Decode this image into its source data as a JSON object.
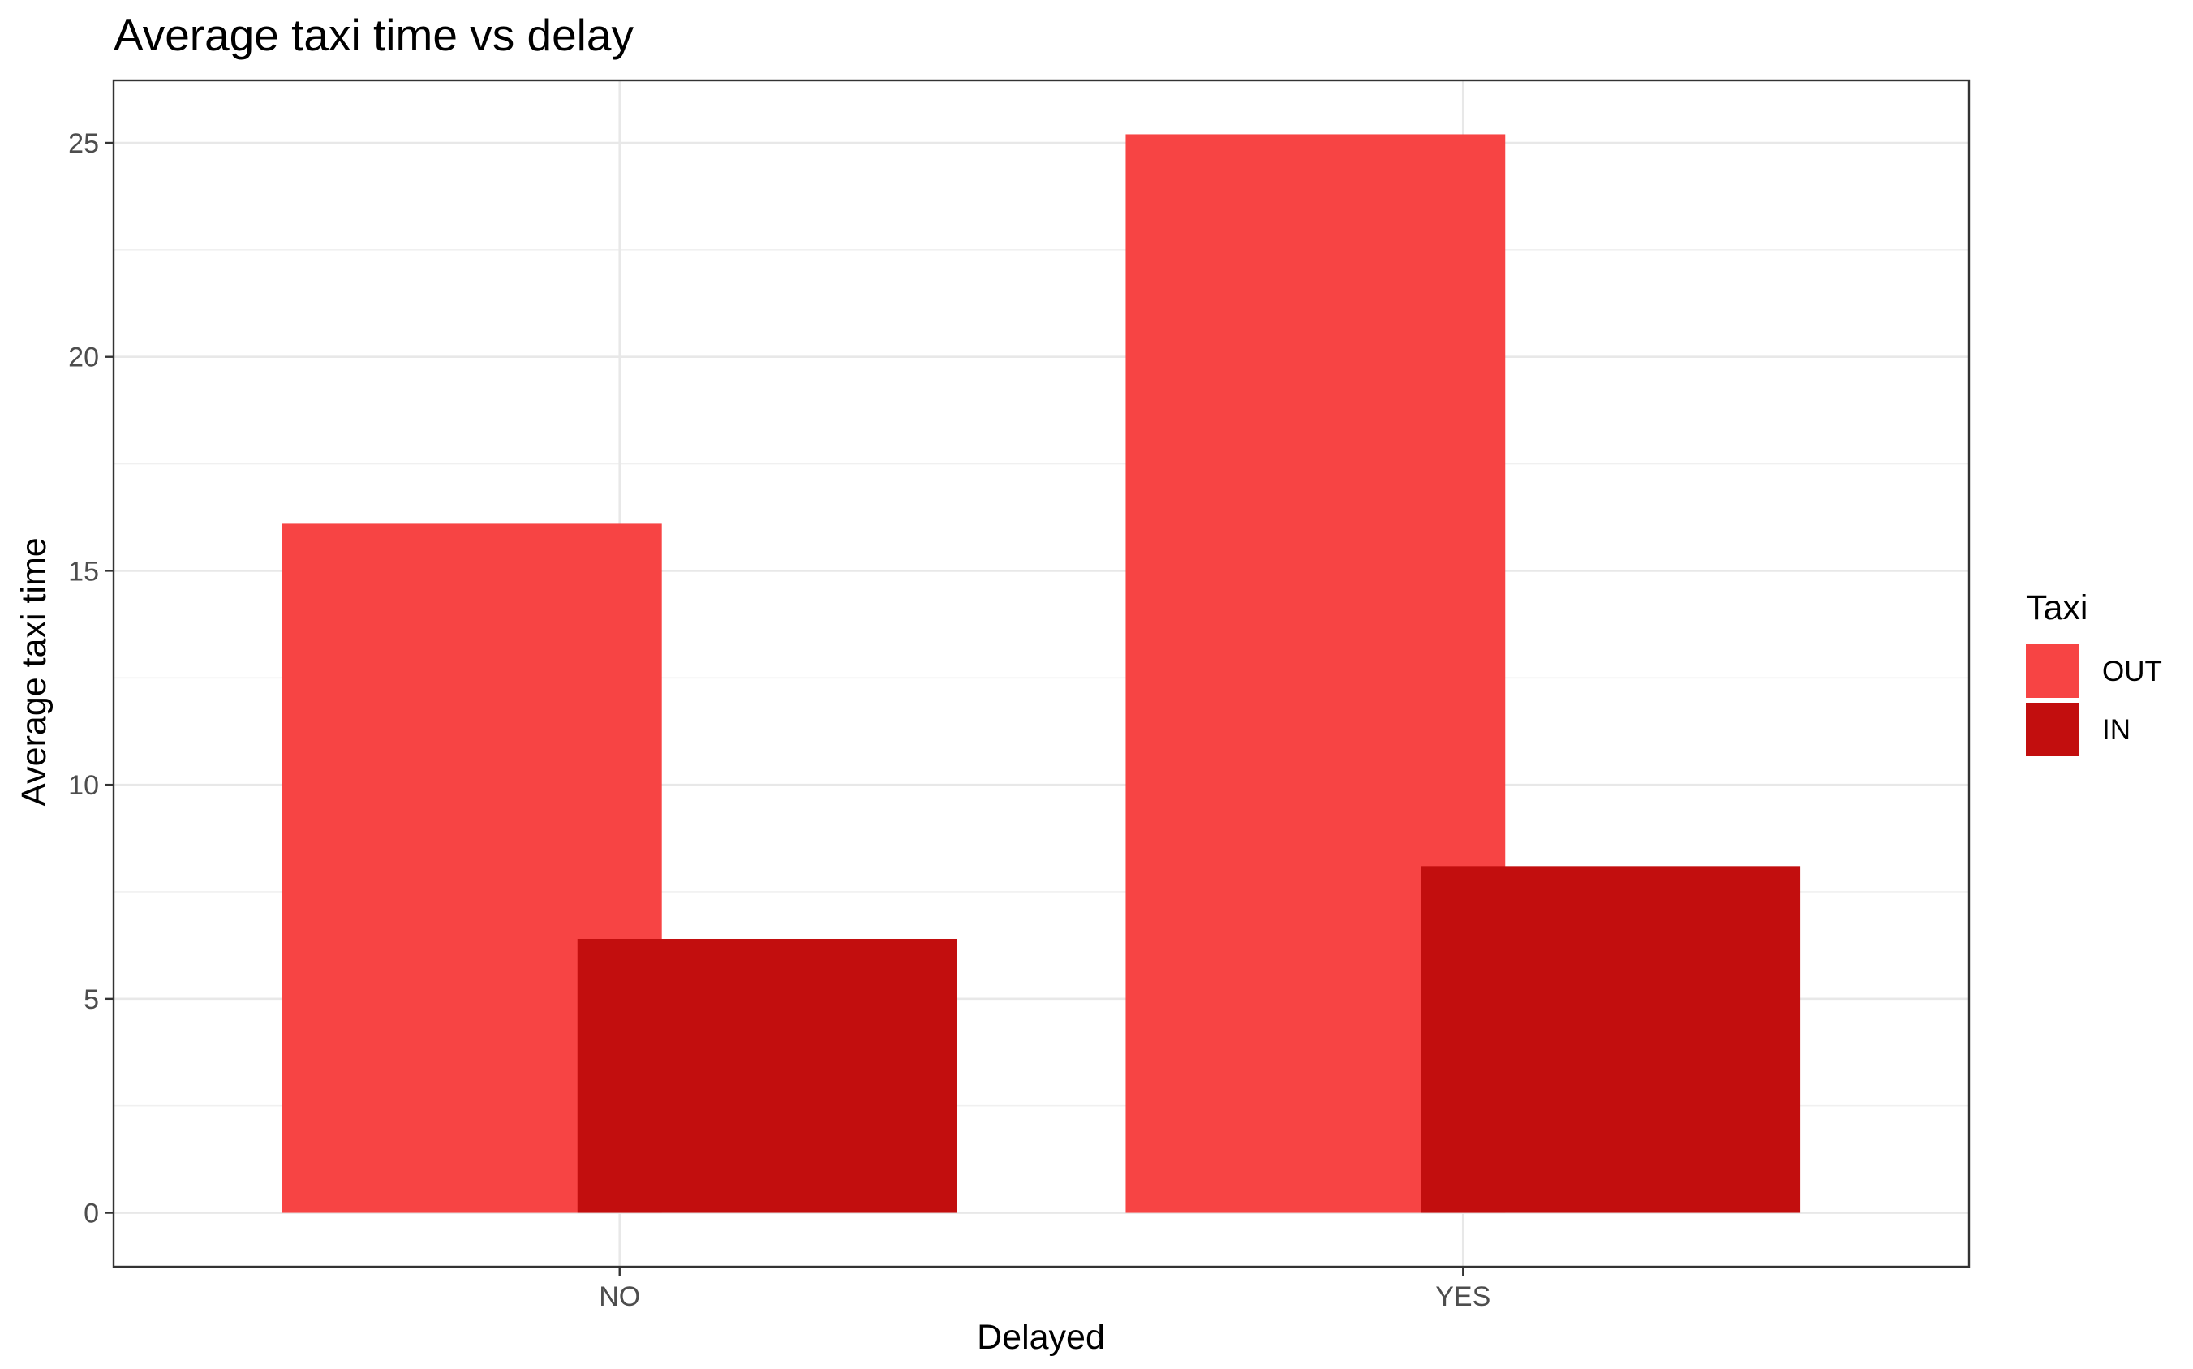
{
  "chart_data": {
    "type": "bar",
    "title": "Average taxi time vs delay",
    "xlabel": "Delayed",
    "ylabel": "Average taxi time",
    "categories": [
      "NO",
      "YES"
    ],
    "series": [
      {
        "name": "OUT",
        "color": "#F74444",
        "values": [
          16.1,
          25.2
        ]
      },
      {
        "name": "IN",
        "color": "#C20E0E",
        "values": [
          6.4,
          8.1
        ]
      }
    ],
    "ylim": [
      -1.26,
      26.46
    ],
    "yticks": [
      0,
      5,
      10,
      15,
      20,
      25
    ],
    "ytick_labels": [
      "0",
      "5",
      "10",
      "15",
      "20",
      "25"
    ],
    "grid": true,
    "legend": {
      "title": "Taxi",
      "position": "right"
    }
  }
}
